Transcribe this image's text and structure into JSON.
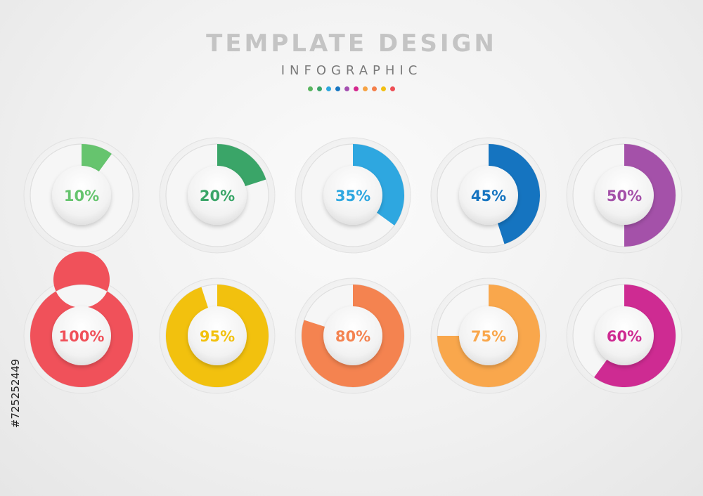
{
  "header": {
    "title": "TEMPLATE DESIGN",
    "subtitle": "INFOGRAPHIC",
    "dot_colors": [
      "#5ab55f",
      "#3aa568",
      "#2ca7df",
      "#1776c1",
      "#a44fb0",
      "#d4268d",
      "#f6a243",
      "#f47f4a",
      "#f2bf12",
      "#ee4e55"
    ]
  },
  "watermark_id": "#725252449",
  "chart_data": {
    "type": "donut-progress",
    "items": [
      {
        "label": "10%",
        "value": 10,
        "color": "#66c46e"
      },
      {
        "label": "20%",
        "value": 20,
        "color": "#3aa568"
      },
      {
        "label": "35%",
        "value": 35,
        "color": "#2ea7e0"
      },
      {
        "label": "45%",
        "value": 45,
        "color": "#1574c0"
      },
      {
        "label": "50%",
        "value": 50,
        "color": "#a451a9"
      },
      {
        "label": "100%",
        "value": 100,
        "color": "#f0515a"
      },
      {
        "label": "95%",
        "value": 95,
        "color": "#f2c10e"
      },
      {
        "label": "80%",
        "value": 80,
        "color": "#f48350"
      },
      {
        "label": "75%",
        "value": 75,
        "color": "#f9a74c"
      },
      {
        "label": "60%",
        "value": 60,
        "color": "#ce2b92"
      }
    ]
  }
}
